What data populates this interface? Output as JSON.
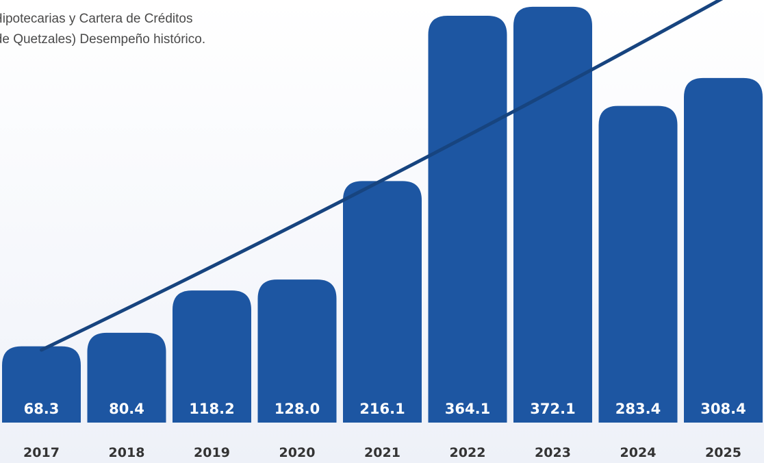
{
  "chart_data": {
    "type": "bar",
    "title_lines": [
      "Hipotecarias y Cartera de Créditos",
      "s de Quetzales) Desempeño histórico."
    ],
    "categories": [
      "2017",
      "2018",
      "2019",
      "2020",
      "2021",
      "2022",
      "2023",
      "2024",
      "2025"
    ],
    "values": [
      68.3,
      80.4,
      118.2,
      128.0,
      216.1,
      364.1,
      372.1,
      283.4,
      308.4
    ],
    "value_labels": [
      "68.3",
      "80.4",
      "118.2",
      "128.0",
      "216.1",
      "364.1",
      "372.1",
      "283.4",
      "308.4"
    ],
    "trendline": {
      "start": 65,
      "end": 380
    },
    "bar_color": "#1d56a2",
    "trend_color": "#17447f",
    "label_color": "#ffffff",
    "year_color": "#333333"
  }
}
